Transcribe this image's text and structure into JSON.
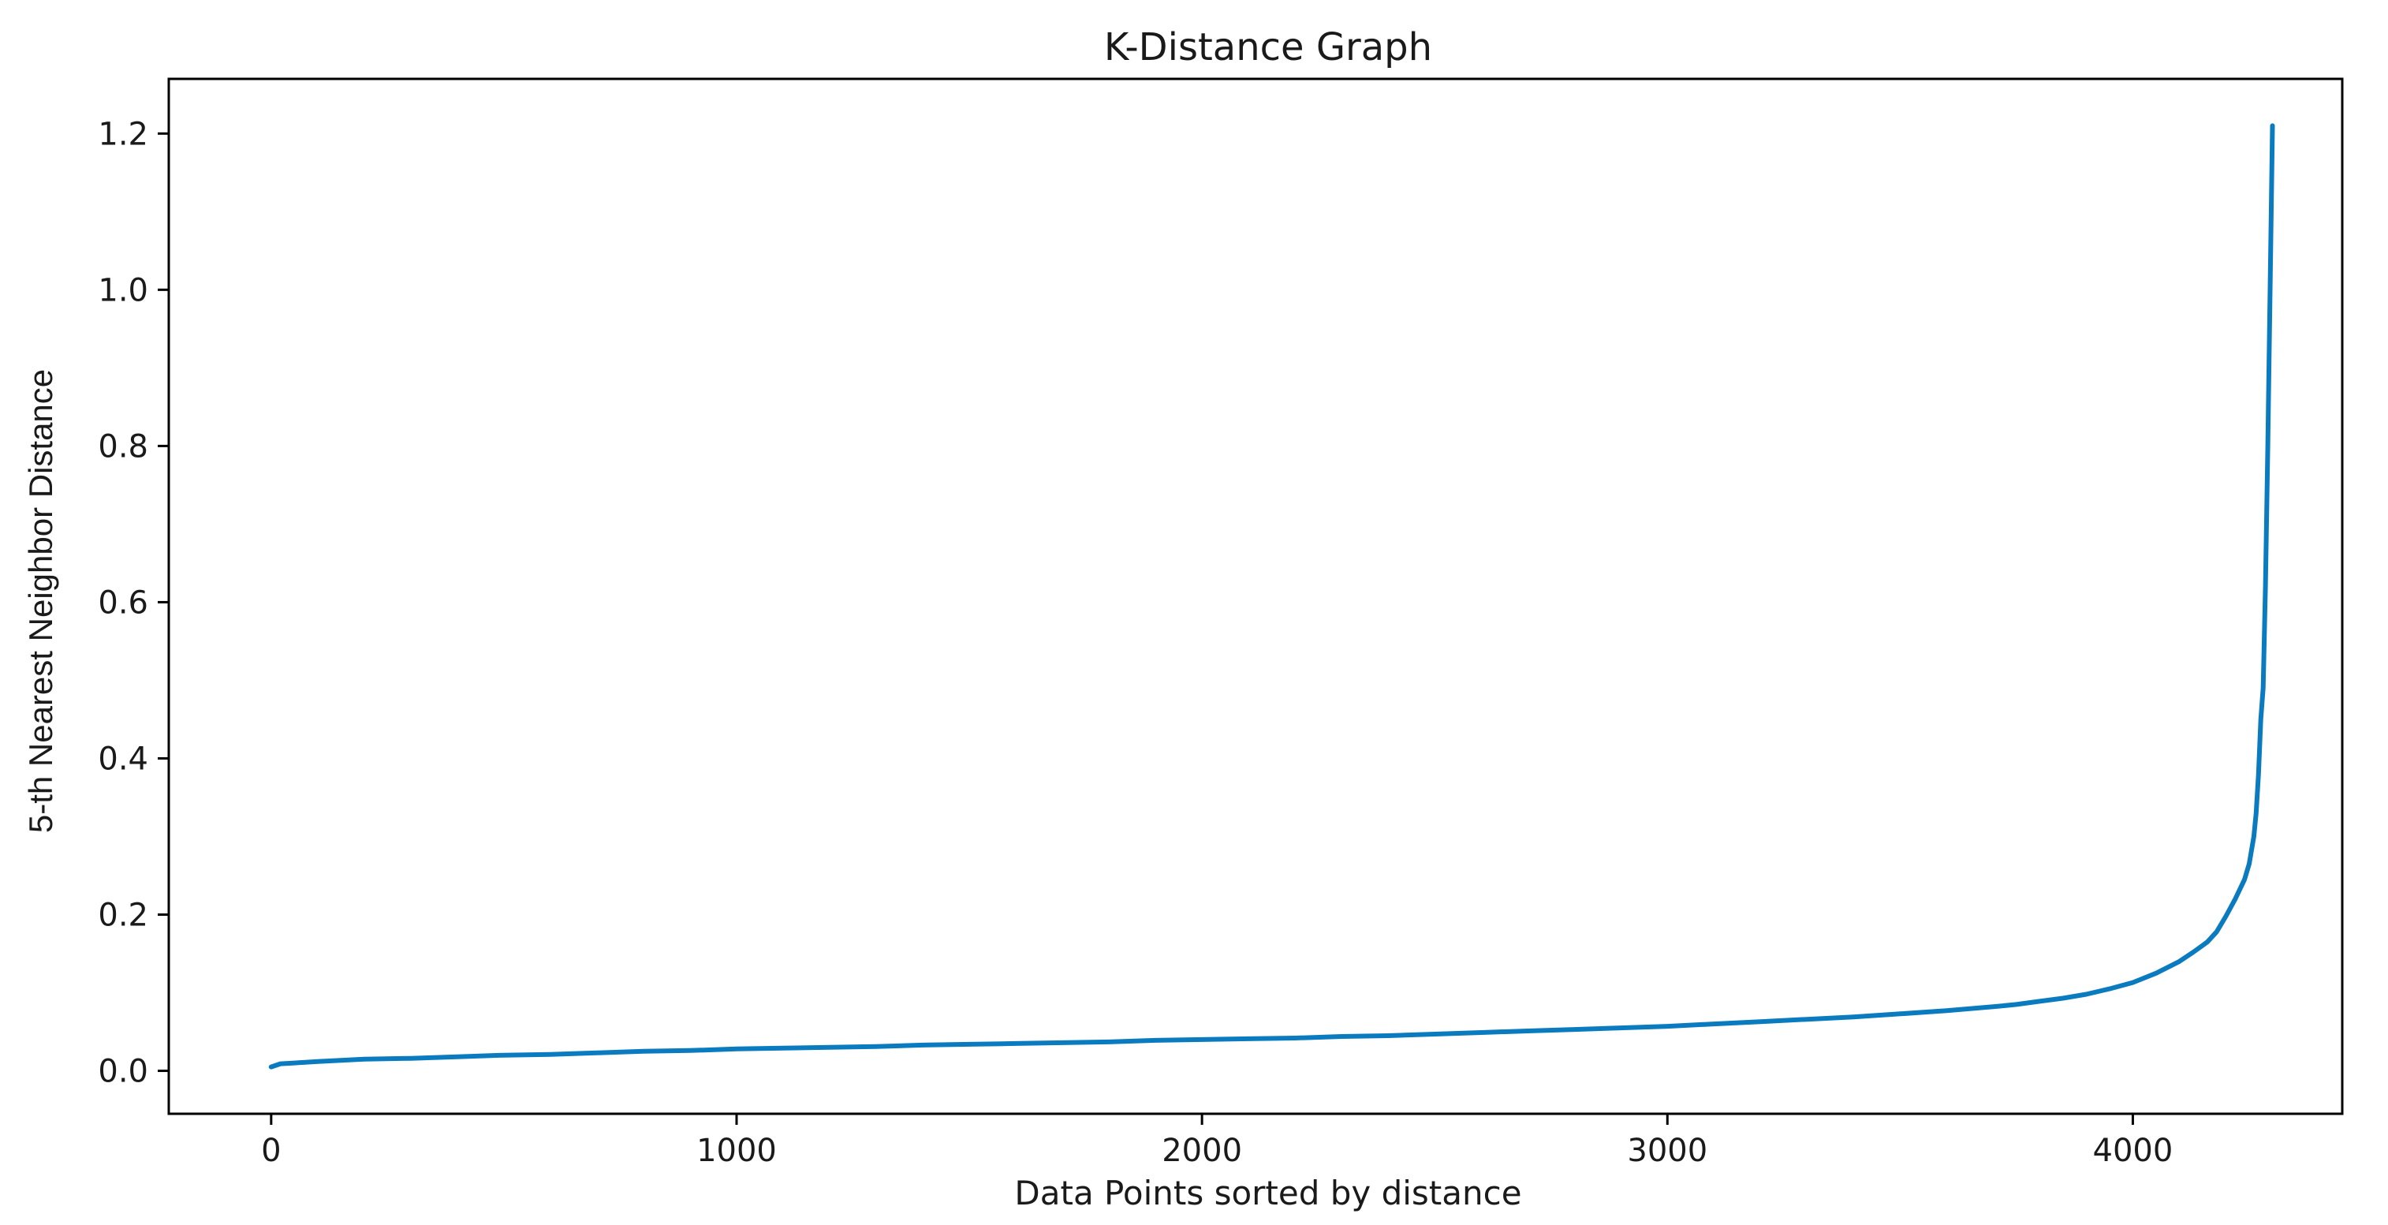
{
  "chart_data": {
    "type": "line",
    "title": "K-Distance Graph",
    "xlabel": "Data Points sorted by distance",
    "ylabel": "5-th Nearest Neighbor Distance",
    "xlim": [
      -220,
      4450
    ],
    "ylim": [
      -0.055,
      1.27
    ],
    "xticks": [
      0,
      1000,
      2000,
      3000,
      4000
    ],
    "xtick_labels": [
      "0",
      "1000",
      "2000",
      "3000",
      "4000"
    ],
    "yticks": [
      0.0,
      0.2,
      0.4,
      0.6,
      0.8,
      1.0,
      1.2
    ],
    "ytick_labels": [
      "0.0",
      "0.2",
      "0.4",
      "0.6",
      "0.8",
      "1.0",
      "1.2"
    ],
    "grid": false,
    "series": [
      {
        "color": "#0a7bbf",
        "x": [
          0,
          20,
          50,
          100,
          200,
          300,
          400,
          500,
          600,
          700,
          800,
          900,
          1000,
          1100,
          1200,
          1300,
          1400,
          1500,
          1600,
          1700,
          1800,
          1900,
          2000,
          2100,
          2200,
          2300,
          2400,
          2500,
          2600,
          2700,
          2800,
          2900,
          3000,
          3100,
          3200,
          3300,
          3400,
          3500,
          3600,
          3700,
          3750,
          3800,
          3850,
          3900,
          3950,
          4000,
          4050,
          4100,
          4130,
          4160,
          4180,
          4200,
          4220,
          4240,
          4250,
          4260,
          4265,
          4270,
          4275,
          4280,
          4285,
          4290,
          4295,
          4300
        ],
        "y": [
          0.005,
          0.009,
          0.01,
          0.012,
          0.015,
          0.016,
          0.018,
          0.02,
          0.021,
          0.023,
          0.025,
          0.026,
          0.028,
          0.029,
          0.03,
          0.031,
          0.033,
          0.034,
          0.035,
          0.036,
          0.037,
          0.039,
          0.04,
          0.041,
          0.042,
          0.044,
          0.045,
          0.047,
          0.049,
          0.051,
          0.053,
          0.055,
          0.057,
          0.06,
          0.063,
          0.066,
          0.069,
          0.073,
          0.077,
          0.082,
          0.085,
          0.089,
          0.093,
          0.098,
          0.105,
          0.113,
          0.125,
          0.14,
          0.152,
          0.165,
          0.178,
          0.198,
          0.22,
          0.245,
          0.265,
          0.3,
          0.33,
          0.38,
          0.45,
          0.49,
          0.62,
          0.8,
          1.0,
          1.21
        ]
      }
    ]
  }
}
